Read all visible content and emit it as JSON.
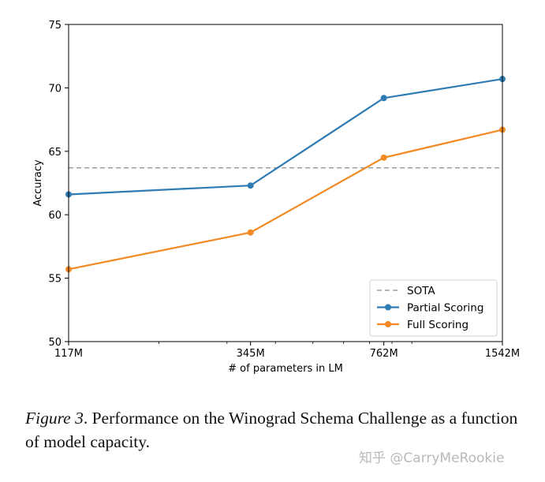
{
  "chart_data": {
    "type": "line",
    "title": "",
    "xlabel": "# of parameters in LM",
    "ylabel": "Accuracy",
    "categories": [
      "117M",
      "345M",
      "762M",
      "1542M"
    ],
    "x_params_millions": [
      117,
      345,
      762,
      1542
    ],
    "x_scale": "log",
    "ylim": [
      50,
      75
    ],
    "yticks": [
      50,
      55,
      60,
      65,
      70,
      75
    ],
    "grid": false,
    "legend": "lower-right",
    "series": [
      {
        "name": "SOTA",
        "style": "dashed",
        "color": "#9e9e9e",
        "values": [
          63.7,
          63.7,
          63.7,
          63.7
        ]
      },
      {
        "name": "Partial Scoring",
        "style": "solid-marker",
        "color": "#2f7bb3",
        "values": [
          61.6,
          62.3,
          69.2,
          70.7
        ]
      },
      {
        "name": "Full Scoring",
        "style": "solid-marker",
        "color": "#f18a24",
        "values": [
          55.7,
          58.6,
          64.5,
          66.7
        ]
      }
    ]
  },
  "caption": {
    "lead": "Figure 3",
    "text": ". Performance on the Winograd Schema Challenge as a function of model capacity."
  },
  "watermark": "知乎 @CarryMeRookie"
}
